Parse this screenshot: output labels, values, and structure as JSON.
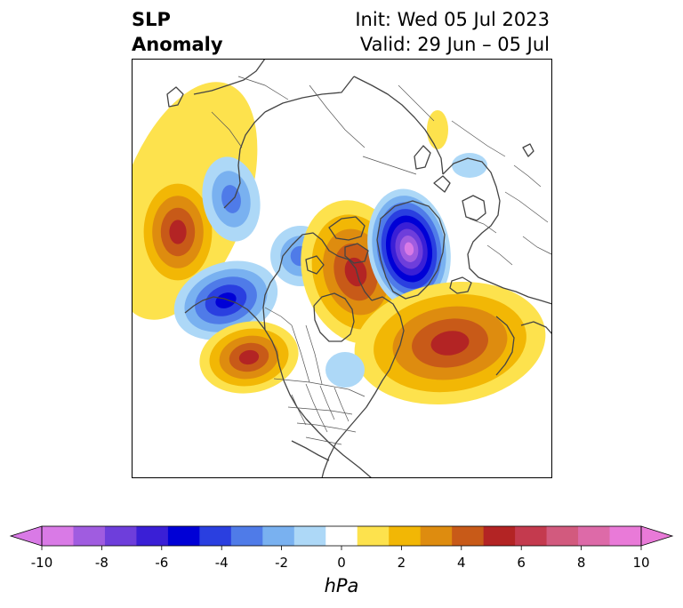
{
  "title": {
    "left_line1": "SLP",
    "left_line2": "Anomaly",
    "init": "Init: Wed 05 Jul 2023",
    "valid": "Valid: 29 Jun – 05 Jul"
  },
  "colorbar": {
    "unit": "hPa",
    "ticks": [
      "-10",
      "-8",
      "-6",
      "-4",
      "-2",
      "0",
      "2",
      "4",
      "6",
      "8",
      "10"
    ],
    "tick_values": [
      -10,
      -8,
      -6,
      -4,
      -2,
      0,
      2,
      4,
      6,
      8,
      10
    ],
    "levels": [
      -10,
      -9,
      -8,
      -7,
      -6,
      -5,
      -4,
      -3,
      -2,
      -1,
      1,
      2,
      3,
      4,
      5,
      6,
      7,
      8,
      9,
      10
    ],
    "colors": [
      "#d97ae6",
      "#a05ce0",
      "#6e3edb",
      "#3a1fd6",
      "#0000d6",
      "#2a3fe0",
      "#4f7be8",
      "#79b1f0",
      "#add8f7",
      "#ffffff",
      "#fde24d",
      "#f2b705",
      "#de8c0f",
      "#c85a18",
      "#b32424",
      "#c43a4e",
      "#d25a7e",
      "#dd6aa8",
      "#e97ad8"
    ],
    "under_color": "#d97ae6",
    "over_color": "#e97ad8"
  },
  "map": {
    "projection": "north-polar-stereographic",
    "features": [
      "coastlines",
      "country-borders",
      "us-state-borders"
    ],
    "anomaly_centers": [
      {
        "name": "north-pacific-high",
        "sign": "positive",
        "peak": 6
      },
      {
        "name": "gulf-of-alaska-low",
        "sign": "negative",
        "peak": -6
      },
      {
        "name": "bering-low",
        "sign": "negative",
        "peak": -5
      },
      {
        "name": "west-coast-high",
        "sign": "positive",
        "peak": 6
      },
      {
        "name": "arctic-canada-high",
        "sign": "positive",
        "peak": 6
      },
      {
        "name": "greenland-low",
        "sign": "negative",
        "peak": -10
      },
      {
        "name": "north-atlantic-high",
        "sign": "positive",
        "peak": 6
      },
      {
        "name": "eastern-us-low",
        "sign": "negative",
        "peak": -2
      }
    ]
  }
}
